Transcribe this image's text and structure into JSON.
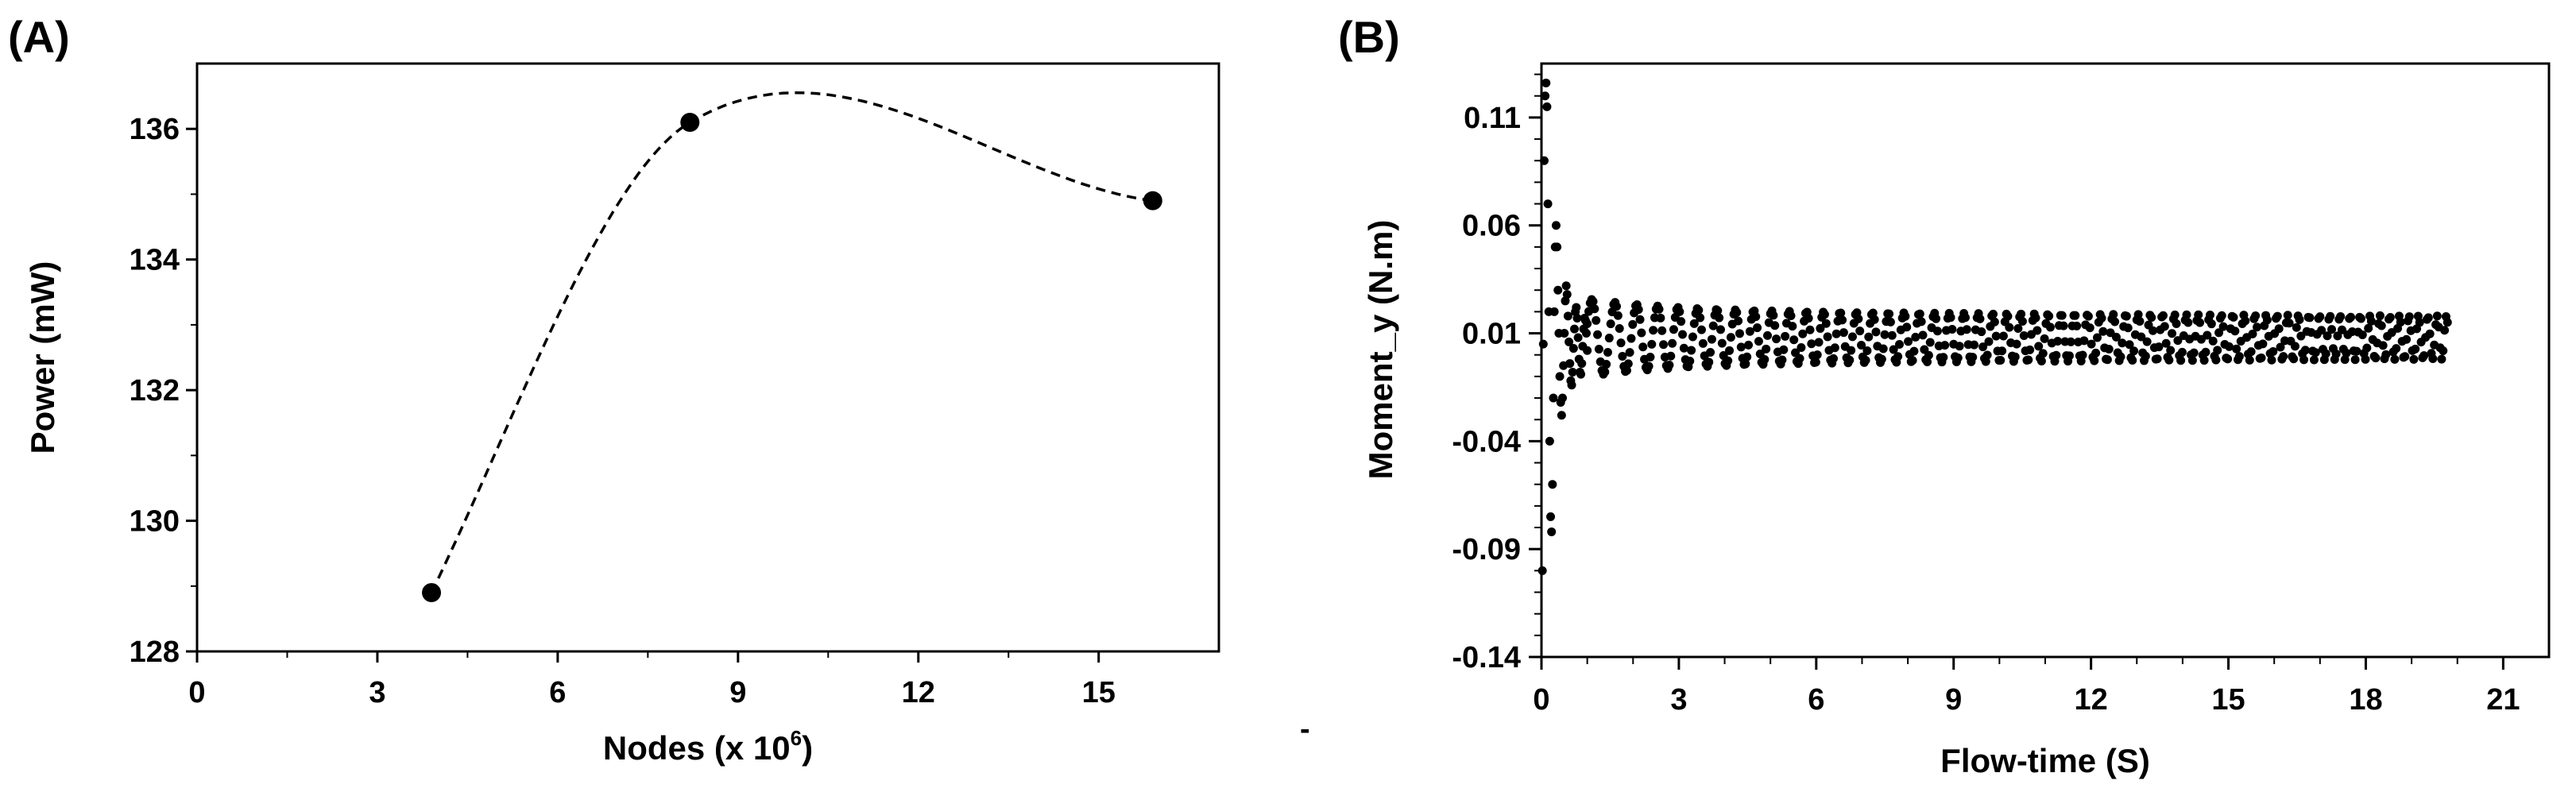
{
  "figure": {
    "stray_mark": "-"
  },
  "chart_data": [
    {
      "panel_label": "(A)",
      "type": "line",
      "line_style": "dashed smooth curve with filled circle markers",
      "xlabel": "Nodes (x 10",
      "xlabel_superscript": "6",
      "xlabel_suffix": ")",
      "ylabel": "Power (mW)",
      "xlim": [
        0,
        17
      ],
      "ylim": [
        128,
        137
      ],
      "x_ticks": [
        0,
        3,
        6,
        9,
        12,
        15
      ],
      "x_tick_labels": [
        "0",
        "3",
        "6",
        "9",
        "12",
        "15"
      ],
      "y_ticks": [
        128,
        130,
        132,
        134,
        136
      ],
      "y_tick_labels": [
        "128",
        "130",
        "132",
        "134",
        "136"
      ],
      "x": [
        3.9,
        8.2,
        15.9
      ],
      "y": [
        128.9,
        136.1,
        134.9
      ],
      "grid": false,
      "legend": null
    },
    {
      "panel_label": "(B)",
      "type": "scatter",
      "xlabel": "Flow-time (S)",
      "ylabel": "Moment_y (N.m)",
      "xlim": [
        0,
        22
      ],
      "ylim": [
        -0.14,
        0.135
      ],
      "x_ticks": [
        0,
        3,
        6,
        9,
        12,
        15,
        18,
        21
      ],
      "x_tick_labels": [
        "0",
        "3",
        "6",
        "9",
        "12",
        "15",
        "18",
        "21"
      ],
      "y_ticks": [
        -0.14,
        -0.09,
        -0.04,
        0.01,
        0.06,
        0.11
      ],
      "y_tick_labels": [
        "-0.14",
        "-0.09",
        "-0.04",
        "0.01",
        "0.06",
        "0.11"
      ],
      "points": [
        [
          0.02,
          -0.1
        ],
        [
          0.04,
          0.005
        ],
        [
          0.06,
          0.09
        ],
        [
          0.08,
          0.12
        ],
        [
          0.1,
          0.126
        ],
        [
          0.12,
          0.115
        ],
        [
          0.14,
          0.07
        ],
        [
          0.16,
          0.02
        ],
        [
          0.18,
          -0.04
        ],
        [
          0.2,
          -0.075
        ],
        [
          0.22,
          -0.082
        ],
        [
          0.24,
          -0.06
        ],
        [
          0.26,
          -0.02
        ],
        [
          0.28,
          0.02
        ],
        [
          0.3,
          0.05
        ],
        [
          0.32,
          0.06
        ],
        [
          0.34,
          0.05
        ],
        [
          0.36,
          0.03
        ],
        [
          0.38,
          0.01
        ],
        [
          0.4,
          -0.01
        ],
        [
          0.42,
          -0.022
        ],
        [
          0.44,
          -0.028
        ],
        [
          0.46,
          -0.02
        ],
        [
          0.48,
          -0.005
        ],
        [
          0.5,
          0.01
        ],
        [
          0.52,
          0.025
        ],
        [
          0.54,
          0.032
        ],
        [
          0.56,
          0.028
        ],
        [
          0.58,
          0.018
        ],
        [
          0.6,
          0.006
        ],
        [
          0.62,
          -0.004
        ],
        [
          0.64,
          -0.012
        ],
        [
          0.66,
          -0.014
        ],
        [
          0.68,
          -0.008
        ],
        [
          0.7,
          0.003
        ],
        [
          0.72,
          0.012
        ],
        [
          0.74,
          0.02
        ],
        [
          0.76,
          0.022
        ],
        [
          0.78,
          0.017
        ],
        [
          0.8,
          0.008
        ],
        [
          0.82,
          -0.002
        ],
        [
          0.84,
          -0.008
        ],
        [
          0.86,
          -0.009
        ],
        [
          0.88,
          -0.004
        ],
        [
          0.9,
          0.004
        ],
        [
          0.92,
          0.012
        ],
        [
          0.94,
          0.017
        ],
        [
          0.96,
          0.016
        ],
        [
          0.98,
          0.01
        ],
        [
          1.0,
          0.002
        ]
      ],
      "oscillation": {
        "description": "decaying oscillation followed by sustained oscillation (dense dots)",
        "t_start": 1.0,
        "t_end": 19.8,
        "center": 0.008,
        "amplitude_start": 0.012,
        "amplitude_end": 0.01,
        "period_start": 0.55,
        "period_end": 0.2
      },
      "grid": false,
      "legend": null
    }
  ]
}
